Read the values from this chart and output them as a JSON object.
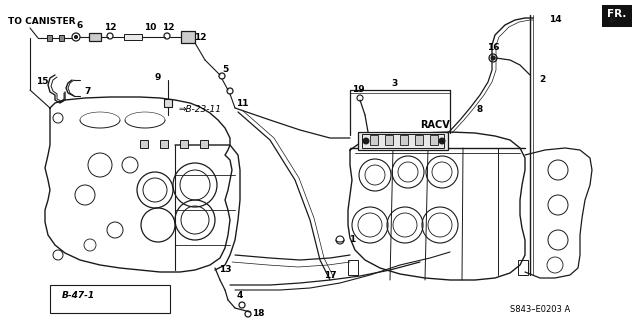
{
  "bg_color": "#ffffff",
  "line_color": "#1a1a1a",
  "text_color": "#000000",
  "labels": {
    "to_canister": "TO CANISTER",
    "b23_11": "⇒B-23-11",
    "b47_1": "B-47-1",
    "racv": "RACV",
    "fr": "FR.",
    "diagram_ref": "S843–E0203 A"
  },
  "figsize": [
    6.4,
    3.19
  ],
  "dpi": 100
}
